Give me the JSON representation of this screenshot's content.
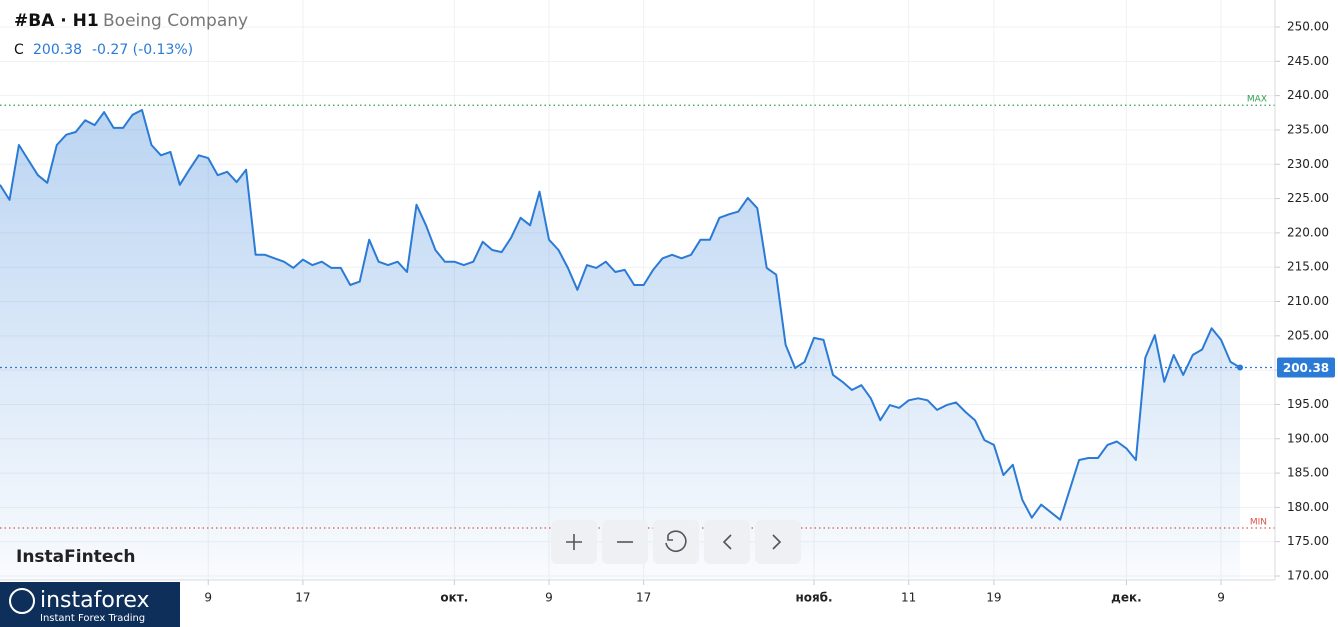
{
  "chart_data": {
    "type": "line",
    "symbol": "#BA · H1",
    "name": "Boeing Company",
    "close_prefix": "C",
    "last": 200.38,
    "change": "-0.27 (-0.13%)",
    "series": [
      {
        "name": "Boeing Company",
        "color": "#2b7bd6",
        "values": [
          227.0,
          224.8,
          232.8,
          230.6,
          228.4,
          227.3,
          232.8,
          234.3,
          234.7,
          236.4,
          235.7,
          237.6,
          235.3,
          235.3,
          237.2,
          237.9,
          232.8,
          231.3,
          231.8,
          227.0,
          229.2,
          231.3,
          230.9,
          228.4,
          228.9,
          227.4,
          229.2,
          216.8,
          216.8,
          216.3,
          215.8,
          214.9,
          216.1,
          215.3,
          215.8,
          214.9,
          214.9,
          212.4,
          212.9,
          219.0,
          215.8,
          215.3,
          215.8,
          214.3,
          224.1,
          221.1,
          217.5,
          215.8,
          215.8,
          215.3,
          215.8,
          218.7,
          217.5,
          217.2,
          219.3,
          222.2,
          221.1,
          226.0,
          219.0,
          217.5,
          214.9,
          211.7,
          215.3,
          214.9,
          215.8,
          214.3,
          214.6,
          212.4,
          212.4,
          214.6,
          216.3,
          216.8,
          216.3,
          216.8,
          219.0,
          219.0,
          222.2,
          222.7,
          223.1,
          225.1,
          223.6,
          214.9,
          213.9,
          203.7,
          200.3,
          201.2,
          204.7,
          204.4,
          199.3,
          198.3,
          197.1,
          197.8,
          195.9,
          192.7,
          194.9,
          194.5,
          195.6,
          195.9,
          195.6,
          194.2,
          194.9,
          195.3,
          193.9,
          192.7,
          189.8,
          189.1,
          184.7,
          186.2,
          181.1,
          178.5,
          180.4,
          179.3,
          178.2,
          182.5,
          186.9,
          187.2,
          187.2,
          189.1,
          189.6,
          188.6,
          186.9,
          201.8,
          205.1,
          198.3,
          202.2,
          199.3,
          202.2,
          203.0,
          206.1,
          204.4,
          201.2,
          200.38
        ]
      }
    ],
    "ylim": [
      170,
      250
    ],
    "yticks": [
      {
        "value": 170,
        "label": "170.00"
      },
      {
        "value": 175,
        "label": "175.00"
      },
      {
        "value": 180,
        "label": "180.00"
      },
      {
        "value": 185,
        "label": "185.00"
      },
      {
        "value": 190,
        "label": "190.00"
      },
      {
        "value": 195,
        "label": "195.00"
      },
      {
        "value": 200,
        "label": "200.00"
      },
      {
        "value": 205,
        "label": "205.00"
      },
      {
        "value": 210,
        "label": "210.00"
      },
      {
        "value": 215,
        "label": "215.00"
      },
      {
        "value": 220,
        "label": "220.00"
      },
      {
        "value": 225,
        "label": "225.00"
      },
      {
        "value": 230,
        "label": "230.00"
      },
      {
        "value": 235,
        "label": "235.00"
      },
      {
        "value": 240,
        "label": "240.00"
      },
      {
        "value": 245,
        "label": "245.00"
      },
      {
        "value": 250,
        "label": "250.00"
      }
    ],
    "xticks": [
      {
        "value": 22,
        "label": "9"
      },
      {
        "value": 32,
        "label": "17"
      },
      {
        "value": 48,
        "label": "окт."
      },
      {
        "value": 58,
        "label": "9"
      },
      {
        "value": 68,
        "label": "17"
      },
      {
        "value": 86,
        "label": "нояб."
      },
      {
        "value": 96,
        "label": "11"
      },
      {
        "value": 105,
        "label": "19"
      },
      {
        "value": 119,
        "label": "дек."
      },
      {
        "value": 129,
        "label": "9"
      }
    ],
    "max_line": {
      "value": 238.6,
      "label": "MAX",
      "color": "#2e9e4f"
    },
    "min_line": {
      "value": 177.0,
      "label": "MIN",
      "color": "#d9534f"
    },
    "grid": true
  },
  "branding": {
    "watermark": "InstaFintech",
    "logo": "instaforex",
    "tagline": "Instant Forex Trading"
  }
}
